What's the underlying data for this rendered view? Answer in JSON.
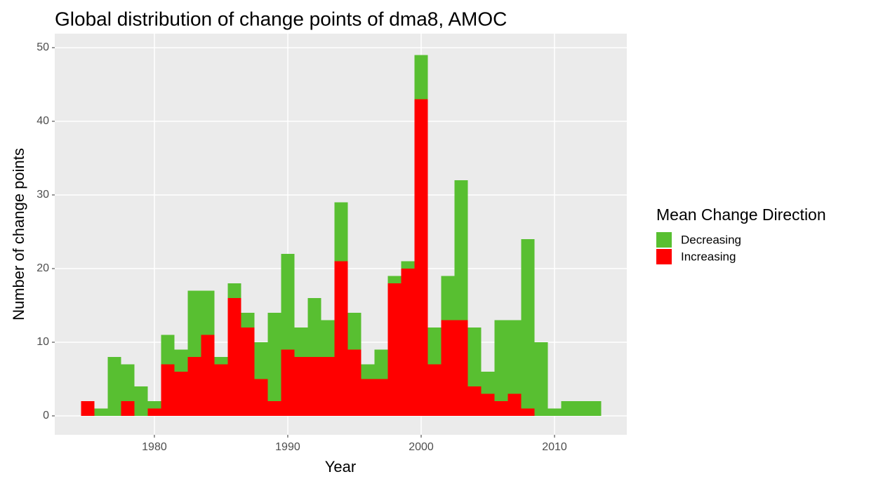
{
  "chart_data": {
    "type": "histogram",
    "title": "Global distribution of change points of dma8, AMOC",
    "x_label": "Year",
    "y_label": "Number of change points",
    "legend_title": "Mean Change Direction",
    "bins": [
      1974.5,
      1975.5,
      1976.5,
      1977.5,
      1978.5,
      1979.5,
      1980.5,
      1981.5,
      1982.5,
      1983.5,
      1984.5,
      1985.5,
      1986.5,
      1987.5,
      1988.5,
      1989.5,
      1990.5,
      1991.5,
      1992.5,
      1993.5,
      1994.5,
      1995.5,
      1996.5,
      1997.5,
      1998.5,
      1999.5,
      2000.5,
      2001.5,
      2002.5,
      2003.5,
      2004.5,
      2005.5,
      2006.5,
      2007.5,
      2008.5,
      2009.5,
      2010.5,
      2011.5,
      2012.5,
      2013.5
    ],
    "series": [
      {
        "name": "Decreasing",
        "color": "#58bf31",
        "values": [
          0,
          1,
          8,
          5,
          4,
          1,
          4,
          3,
          9,
          6,
          1,
          2,
          2,
          5,
          12,
          13,
          4,
          8,
          5,
          8,
          5,
          2,
          4,
          1,
          1,
          6,
          5,
          6,
          19,
          8,
          3,
          11,
          10,
          23,
          10,
          1,
          2,
          2,
          2
        ]
      },
      {
        "name": "Increasing",
        "color": "#ff0000",
        "values": [
          2,
          0,
          0,
          2,
          0,
          1,
          7,
          6,
          8,
          11,
          7,
          16,
          12,
          5,
          2,
          9,
          8,
          8,
          8,
          21,
          9,
          5,
          5,
          18,
          20,
          43,
          7,
          13,
          13,
          4,
          3,
          2,
          3,
          1,
          0,
          0,
          0,
          0,
          0
        ]
      }
    ],
    "stacked": true,
    "xlim": [
      1972.53,
      2015.42
    ],
    "ylim": [
      -2.57,
      51.9
    ],
    "xticks": [
      1980,
      1990,
      2000,
      2010
    ],
    "yticks": [
      0,
      10,
      20,
      30,
      40,
      50
    ],
    "grid": true,
    "legend_position": "right"
  }
}
